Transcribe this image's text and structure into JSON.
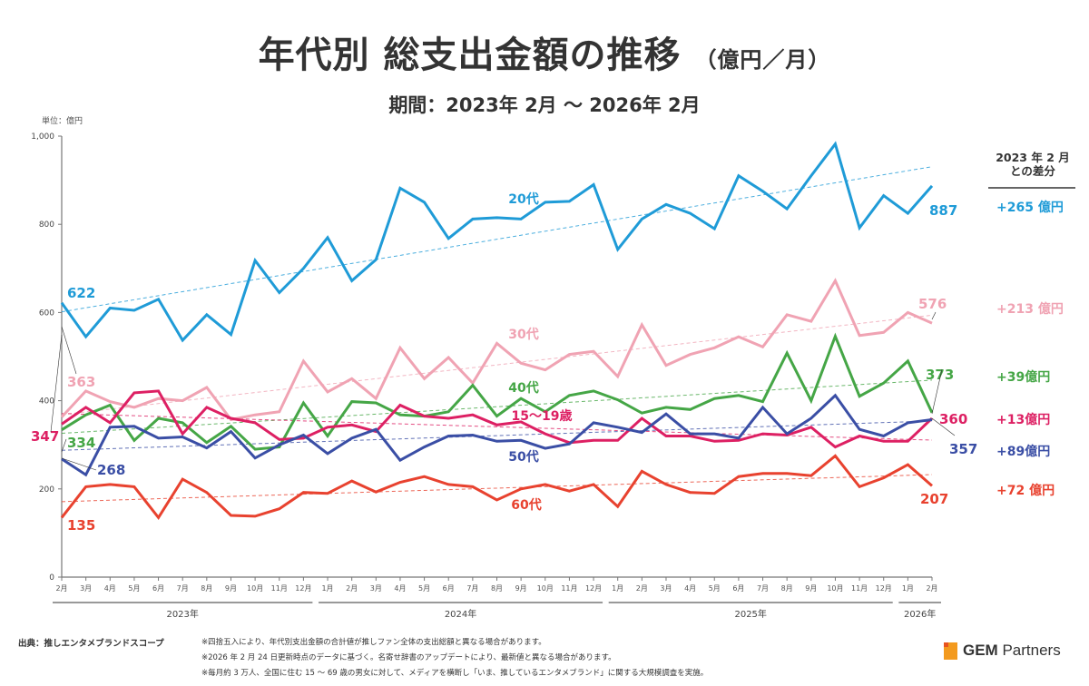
{
  "header": {
    "title_main": "年代別 総支出金額の推移",
    "title_unit": "（億円／月）",
    "subtitle": "期間：2023年 2月 〜 2026年 2月",
    "unit_label": "単位：億円"
  },
  "diff_panel": {
    "header_line1": "2023 年 2 月",
    "header_line2": "との差分",
    "items": [
      {
        "series": "20代",
        "label": "+265 億円",
        "color": "#1f9bd7"
      },
      {
        "series": "30代",
        "label": "+213 億円",
        "color": "#f0a3b3"
      },
      {
        "series": "40代",
        "label": "+39億円",
        "color": "#45a646"
      },
      {
        "series": "15〜19歳",
        "label": "+13億円",
        "color": "#dd2063"
      },
      {
        "series": "50代",
        "label": "+89億円",
        "color": "#3a4ea5"
      },
      {
        "series": "60代",
        "label": "+72 億円",
        "color": "#e8422f"
      }
    ]
  },
  "chart_data": {
    "type": "line",
    "title": "年代別 総支出金額の推移（億円／月）",
    "subtitle": "期間：2023年 2月 〜 2026年 2月",
    "xlabel": "",
    "ylabel": "単位：億円",
    "ylim": [
      0,
      1000
    ],
    "yticks": [
      0,
      200,
      400,
      600,
      800,
      1000
    ],
    "ytick_labels": [
      "0",
      "200",
      "400",
      "600",
      "800",
      "1,000"
    ],
    "grid": false,
    "trendlines": true,
    "x": [
      "2月",
      "3月",
      "4月",
      "5月",
      "6月",
      "7月",
      "8月",
      "9月",
      "10月",
      "11月",
      "12月",
      "1月",
      "2月",
      "3月",
      "4月",
      "5月",
      "6月",
      "7月",
      "8月",
      "9月",
      "10月",
      "11月",
      "12月",
      "1月",
      "2月",
      "3月",
      "4月",
      "5月",
      "6月",
      "7月",
      "8月",
      "9月",
      "10月",
      "11月",
      "12月",
      "1月",
      "2月"
    ],
    "year_groups": [
      {
        "label": "2023年",
        "start": 0,
        "end": 10
      },
      {
        "label": "2024年",
        "start": 11,
        "end": 22
      },
      {
        "label": "2025年",
        "start": 23,
        "end": 34
      },
      {
        "label": "2026年",
        "start": 35,
        "end": 36
      }
    ],
    "series": [
      {
        "name": "20代",
        "color": "#1f9bd7",
        "values": [
          622,
          545,
          610,
          605,
          630,
          537,
          595,
          550,
          718,
          645,
          700,
          770,
          672,
          720,
          882,
          850,
          768,
          812,
          815,
          812,
          850,
          852,
          890,
          743,
          812,
          845,
          825,
          790,
          910,
          875,
          835,
          910,
          982,
          792,
          865,
          825,
          887
        ],
        "start_label": "622",
        "end_label": "887"
      },
      {
        "name": "30代",
        "color": "#f0a3b3",
        "values": [
          363,
          422,
          398,
          385,
          405,
          400,
          430,
          357,
          368,
          375,
          490,
          420,
          450,
          405,
          520,
          450,
          498,
          440,
          530,
          485,
          470,
          505,
          512,
          455,
          572,
          480,
          505,
          520,
          545,
          522,
          595,
          580,
          672,
          548,
          555,
          600,
          576
        ],
        "start_label": "363",
        "end_label": "576"
      },
      {
        "name": "40代",
        "color": "#45a646",
        "values": [
          334,
          368,
          390,
          310,
          360,
          350,
          305,
          342,
          290,
          295,
          395,
          320,
          398,
          395,
          368,
          365,
          375,
          435,
          365,
          405,
          375,
          412,
          422,
          402,
          372,
          385,
          380,
          405,
          412,
          398,
          508,
          400,
          546,
          410,
          440,
          490,
          373
        ],
        "start_label": "334",
        "end_label": "373"
      },
      {
        "name": "15〜19歳",
        "color": "#dd2063",
        "values": [
          347,
          385,
          350,
          418,
          422,
          325,
          385,
          360,
          350,
          312,
          315,
          340,
          345,
          330,
          390,
          365,
          360,
          368,
          345,
          352,
          325,
          305,
          310,
          310,
          360,
          320,
          320,
          308,
          310,
          325,
          322,
          340,
          295,
          320,
          308,
          308,
          360
        ],
        "start_label": "347",
        "end_label": "360"
      },
      {
        "name": "50代",
        "color": "#3a4ea5",
        "values": [
          268,
          232,
          340,
          342,
          315,
          318,
          293,
          330,
          270,
          300,
          322,
          280,
          315,
          335,
          265,
          295,
          320,
          322,
          308,
          310,
          292,
          302,
          350,
          340,
          328,
          370,
          325,
          325,
          315,
          385,
          325,
          360,
          412,
          335,
          320,
          350,
          357
        ],
        "start_label": "268",
        "end_label": "357"
      },
      {
        "name": "60代",
        "color": "#e8422f",
        "values": [
          135,
          205,
          210,
          205,
          135,
          222,
          192,
          140,
          138,
          155,
          192,
          190,
          218,
          193,
          215,
          228,
          210,
          205,
          175,
          200,
          210,
          195,
          210,
          160,
          240,
          210,
          192,
          190,
          228,
          235,
          235,
          230,
          275,
          205,
          225,
          255,
          207
        ],
        "start_label": "135",
        "end_label": "207"
      }
    ]
  },
  "footer": {
    "source": "出典：推しエンタメブランドスコープ",
    "notes": [
      "※四捨五入により、年代別支出金額の合計値が推しファン全体の支出総額と異なる場合があります。",
      "※2026 年 2 月 24 日更新時点のデータに基づく。名寄せ辞書のアップデートにより、最新値と異なる場合があります。",
      "※毎月約 3 万人、全国に住む 15 〜 69 歳の男女に対して、メディアを横断し「いま、推しているエンタメブランド」に関する大規模調査を実施。"
    ],
    "logo_bold": "GEM",
    "logo_light": " Partners"
  }
}
